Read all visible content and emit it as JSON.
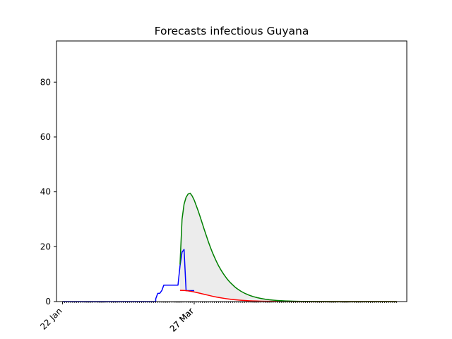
{
  "chart_data": {
    "type": "line",
    "title": "Forecasts infectious Guyana",
    "xlabel": "",
    "ylabel": "",
    "ylim": [
      0,
      95
    ],
    "y_ticks": [
      0,
      20,
      40,
      60,
      80
    ],
    "x_tick_labels": [
      {
        "day": 0,
        "label": "22 Jan"
      },
      {
        "day": 65,
        "label": "27 Mar"
      },
      {
        "day": 65,
        "label": "27 Mar"
      }
    ],
    "x_range_days": [
      -3,
      170
    ],
    "x_minor_tick_span_days": [
      0,
      165
    ],
    "grid": false,
    "legend": "none",
    "colors": {
      "observed": "#0000ff",
      "forecast_upper": "#008000",
      "forecast_lower": "#ff0000",
      "band_fill": "#ececec"
    },
    "series": [
      {
        "role": "observed",
        "x_days": [
          0,
          46,
          46,
          47,
          48,
          48,
          49,
          50,
          51,
          52,
          53,
          54,
          55,
          56,
          57,
          58,
          59,
          59,
          60,
          61,
          62,
          63,
          64,
          65
        ],
        "values": [
          0,
          0,
          1,
          3,
          3,
          3,
          4,
          6,
          6,
          6,
          6,
          6,
          6,
          6,
          6,
          13,
          18,
          18,
          19,
          4,
          4,
          4,
          4,
          4
        ]
      },
      {
        "role": "forecast_upper",
        "x_days": [
          58,
          59,
          60,
          61,
          62,
          63,
          64,
          65,
          66,
          67,
          68,
          69,
          70,
          71,
          72,
          73,
          74,
          75,
          76,
          77,
          78,
          79,
          80,
          81,
          82,
          83,
          84,
          85,
          86,
          88,
          90,
          92,
          94,
          96,
          98,
          100,
          102,
          104,
          106,
          108,
          110,
          112,
          114,
          116,
          118,
          120,
          125,
          130,
          135,
          140,
          145,
          150,
          155,
          160,
          165
        ],
        "values": [
          13.5,
          30,
          35.5,
          38,
          39.2,
          39.5,
          38.5,
          37,
          35,
          33,
          30.8,
          28.5,
          26.2,
          24,
          21.8,
          19.8,
          17.9,
          16.2,
          14.6,
          13.1,
          11.8,
          10.6,
          9.5,
          8.5,
          7.6,
          6.8,
          6.1,
          5.4,
          4.8,
          3.8,
          3.0,
          2.35,
          1.85,
          1.45,
          1.12,
          0.87,
          0.67,
          0.52,
          0.4,
          0.31,
          0.24,
          0.18,
          0.14,
          0.11,
          0.08,
          0.06,
          0.03,
          0.02,
          0.01,
          0.0,
          0.0,
          0.0,
          0.0,
          0.0,
          0.0
        ]
      },
      {
        "role": "forecast_lower",
        "x_days": [
          58,
          60,
          62,
          64,
          66,
          68,
          70,
          72,
          74,
          76,
          78,
          80,
          82,
          84,
          86,
          88,
          90,
          92,
          94,
          96,
          98,
          100,
          105,
          110,
          115,
          120,
          130,
          140,
          150,
          160,
          165
        ],
        "values": [
          4.1,
          4.05,
          3.9,
          3.65,
          3.35,
          3.0,
          2.65,
          2.3,
          1.95,
          1.65,
          1.38,
          1.14,
          0.93,
          0.75,
          0.6,
          0.48,
          0.38,
          0.3,
          0.23,
          0.18,
          0.14,
          0.11,
          0.06,
          0.03,
          0.015,
          0.008,
          0.002,
          0.0,
          0.0,
          0.0,
          0.0
        ]
      }
    ]
  }
}
